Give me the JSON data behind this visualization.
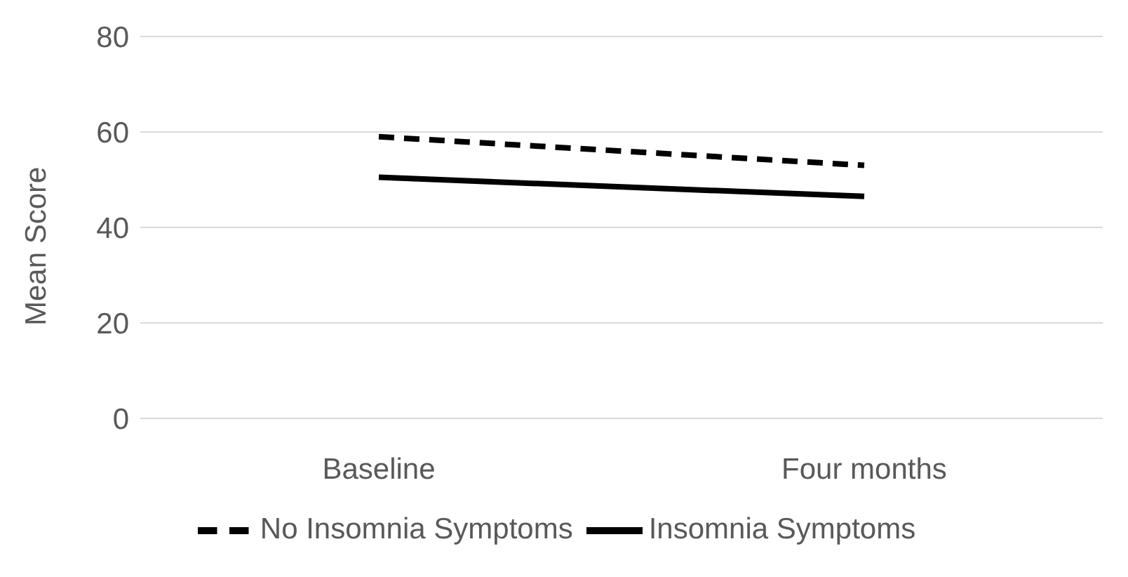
{
  "chart_data": {
    "type": "line",
    "ylabel": "Mean Score",
    "categories": [
      "Baseline",
      "Four months"
    ],
    "series": [
      {
        "name": "No Insomnia Symptoms",
        "color": "#000000",
        "values": [
          59,
          53
        ],
        "line_style": "dashed"
      },
      {
        "name": "Insomnia Symptoms",
        "color": "#000000",
        "values": [
          50.5,
          46.5
        ],
        "line_style": "solid"
      }
    ],
    "ylim": [
      0,
      80
    ],
    "yticks": [
      0,
      20,
      40,
      60,
      80
    ],
    "grid": "y",
    "legend": "bottom",
    "marker": "none"
  }
}
